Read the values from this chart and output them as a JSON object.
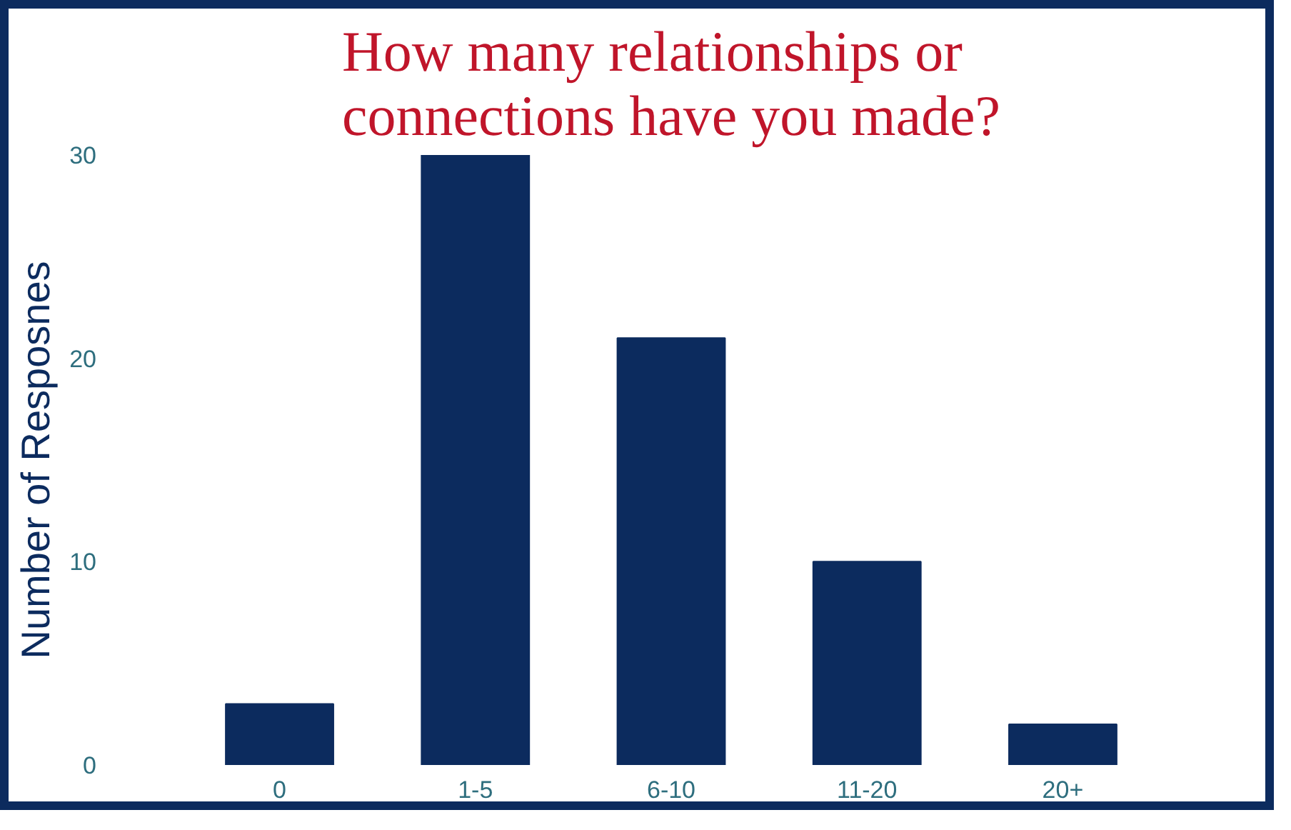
{
  "chart_data": {
    "type": "bar",
    "title": "How many relationships or connections have you made?",
    "ylabel": "Number of Resposnes",
    "categories": [
      "0",
      "1-5",
      "6-10",
      "11-20",
      "20+"
    ],
    "values": [
      3,
      30,
      21,
      10,
      2
    ],
    "color": "#0c2b5e",
    "ylim": [
      0,
      30
    ],
    "yticks": [
      0,
      10,
      20,
      30
    ],
    "grid": false
  }
}
